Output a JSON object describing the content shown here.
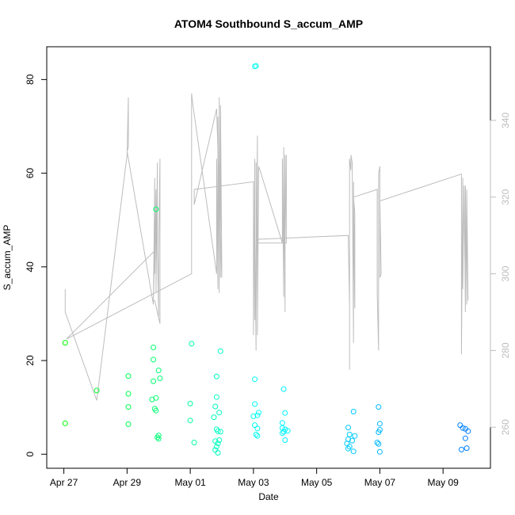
{
  "chart_data": {
    "type": "scatter",
    "title": "ATOM4 Southbound S_accum_AMP",
    "xlabel": "Date",
    "ylabel": "S_accum_AMP",
    "x_axis": {
      "type": "date",
      "range": [
        "2015-04-26T11:00",
        "2015-05-10T12:00"
      ],
      "ticks": [
        {
          "label": "Apr 27",
          "date": "2015-04-27"
        },
        {
          "label": "Apr 29",
          "date": "2015-04-29"
        },
        {
          "label": "May 01",
          "date": "2015-05-01"
        },
        {
          "label": "May 03",
          "date": "2015-05-03"
        },
        {
          "label": "May 05",
          "date": "2015-05-05"
        },
        {
          "label": "May 07",
          "date": "2015-05-07"
        },
        {
          "label": "May 09",
          "date": "2015-05-09"
        }
      ]
    },
    "y_left": {
      "range": [
        -3,
        87
      ],
      "ticks": [
        0,
        20,
        40,
        60,
        80
      ]
    },
    "y_right": {
      "range": [
        249.3,
        359.2
      ],
      "ticks": [
        260,
        280,
        300,
        320,
        340
      ],
      "color": "#bdbdbd"
    },
    "grid": false,
    "legend": "none",
    "series": [
      {
        "kind": "points",
        "axis": "left",
        "color_scale": [
          "#00ff00",
          "#00ffff",
          "#0080ff"
        ],
        "points": [
          {
            "x": "2015-04-27T01:00",
            "y": 23.8
          },
          {
            "x": "2015-04-27T01:00",
            "y": 6.6
          },
          {
            "x": "2015-04-28T01:00",
            "y": 13.6
          },
          {
            "x": "2015-04-29T01:00",
            "y": 16.7
          },
          {
            "x": "2015-04-29T01:00",
            "y": 12.9
          },
          {
            "x": "2015-04-29T01:00",
            "y": 10.1
          },
          {
            "x": "2015-04-29T01:00",
            "y": 6.4
          },
          {
            "x": "2015-04-29T20:00",
            "y": 22.8
          },
          {
            "x": "2015-04-29T20:00",
            "y": 20.2
          },
          {
            "x": "2015-04-29T20:00",
            "y": 15.6
          },
          {
            "x": "2015-04-29T19:00",
            "y": 11.7
          },
          {
            "x": "2015-04-29T22:00",
            "y": 12.0
          },
          {
            "x": "2015-04-29T21:00",
            "y": 9.7
          },
          {
            "x": "2015-04-29T22:00",
            "y": 9.3
          },
          {
            "x": "2015-04-29T22:00",
            "y": 52.3
          },
          {
            "x": "2015-04-30T00:00",
            "y": 17.9
          },
          {
            "x": "2015-04-30T01:00",
            "y": 16.2
          },
          {
            "x": "2015-04-30T00:00",
            "y": 4.0
          },
          {
            "x": "2015-04-30T00:00",
            "y": 3.3
          },
          {
            "x": "2015-04-29T23:00",
            "y": 3.6
          },
          {
            "x": "2015-05-01T01:00",
            "y": 23.6
          },
          {
            "x": "2015-05-01T00:00",
            "y": 10.8
          },
          {
            "x": "2015-05-01T00:00",
            "y": 7.2
          },
          {
            "x": "2015-05-01T03:00",
            "y": 2.5
          },
          {
            "x": "2015-05-01T20:00",
            "y": 16.6
          },
          {
            "x": "2015-05-01T20:00",
            "y": 12.2
          },
          {
            "x": "2015-05-01T19:00",
            "y": 10.2
          },
          {
            "x": "2015-05-01T23:00",
            "y": 22.0
          },
          {
            "x": "2015-05-01T22:00",
            "y": 8.9
          },
          {
            "x": "2015-05-01T18:00",
            "y": 7.9
          },
          {
            "x": "2015-05-01T20:00",
            "y": 5.3
          },
          {
            "x": "2015-05-01T21:00",
            "y": 4.9
          },
          {
            "x": "2015-05-01T23:00",
            "y": 4.8
          },
          {
            "x": "2015-05-01T19:00",
            "y": 2.8
          },
          {
            "x": "2015-05-01T21:00",
            "y": 2.3
          },
          {
            "x": "2015-05-01T20:00",
            "y": 1.6
          },
          {
            "x": "2015-05-01T19:00",
            "y": 0.9
          },
          {
            "x": "2015-05-01T21:00",
            "y": 0.3
          },
          {
            "x": "2015-05-01T22:00",
            "y": 3.0
          },
          {
            "x": "2015-05-03T01:00",
            "y": 82.8
          },
          {
            "x": "2015-05-03T02:00",
            "y": 82.9
          },
          {
            "x": "2015-05-03T01:00",
            "y": 16.0
          },
          {
            "x": "2015-05-03T01:00",
            "y": 10.7
          },
          {
            "x": "2015-05-03T00:00",
            "y": 8.1
          },
          {
            "x": "2015-05-03T03:00",
            "y": 8.3
          },
          {
            "x": "2015-05-03T04:00",
            "y": 8.9
          },
          {
            "x": "2015-05-03T01:00",
            "y": 6.2
          },
          {
            "x": "2015-05-03T03:00",
            "y": 5.5
          },
          {
            "x": "2015-05-03T02:00",
            "y": 4.2
          },
          {
            "x": "2015-05-03T03:00",
            "y": 3.9
          },
          {
            "x": "2015-05-03T23:00",
            "y": 13.9
          },
          {
            "x": "2015-05-04T00:00",
            "y": 8.8
          },
          {
            "x": "2015-05-03T22:00",
            "y": 6.7
          },
          {
            "x": "2015-05-03T22:00",
            "y": 5.6
          },
          {
            "x": "2015-05-04T00:00",
            "y": 5.3
          },
          {
            "x": "2015-05-04T02:00",
            "y": 5.0
          },
          {
            "x": "2015-05-03T23:00",
            "y": 4.8
          },
          {
            "x": "2015-05-03T22:00",
            "y": 4.5
          },
          {
            "x": "2015-05-04T00:00",
            "y": 3.0
          },
          {
            "x": "2015-05-06T00:00",
            "y": 5.7
          },
          {
            "x": "2015-05-06T01:00",
            "y": 4.2
          },
          {
            "x": "2015-05-06T00:00",
            "y": 3.2
          },
          {
            "x": "2015-05-06T03:00",
            "y": 2.9
          },
          {
            "x": "2015-05-05T23:00",
            "y": 2.3
          },
          {
            "x": "2015-05-06T01:00",
            "y": 1.6
          },
          {
            "x": "2015-05-06T00:00",
            "y": 1.2
          },
          {
            "x": "2015-05-06T04:00",
            "y": 0.6
          },
          {
            "x": "2015-05-06T05:00",
            "y": 3.9
          },
          {
            "x": "2015-05-06T04:00",
            "y": 9.1
          },
          {
            "x": "2015-05-06T23:00",
            "y": 10.1
          },
          {
            "x": "2015-05-07T00:00",
            "y": 6.5
          },
          {
            "x": "2015-05-07T00:00",
            "y": 5.2
          },
          {
            "x": "2015-05-06T23:00",
            "y": 4.7
          },
          {
            "x": "2015-05-06T22:00",
            "y": 2.5
          },
          {
            "x": "2015-05-06T23:00",
            "y": 2.2
          },
          {
            "x": "2015-05-07T00:00",
            "y": 0.5
          },
          {
            "x": "2015-05-09T13:00",
            "y": 6.2
          },
          {
            "x": "2015-05-09T15:00",
            "y": 5.6
          },
          {
            "x": "2015-05-09T17:00",
            "y": 5.4
          },
          {
            "x": "2015-05-09T19:00",
            "y": 4.9
          },
          {
            "x": "2015-05-09T17:00",
            "y": 3.4
          },
          {
            "x": "2015-05-09T18:00",
            "y": 1.3
          },
          {
            "x": "2015-05-09T14:00",
            "y": 1.0
          }
        ]
      },
      {
        "kind": "line",
        "axis": "right",
        "color": "#bdbdbd",
        "points": [
          {
            "x": "2015-04-27T01:00",
            "y": 296
          },
          {
            "x": "2015-04-27T01:00",
            "y": 290
          },
          {
            "x": "2015-04-28T01:00",
            "y": 267
          },
          {
            "x": "2015-04-29T00:00",
            "y": 331
          },
          {
            "x": "2015-04-29T01:00",
            "y": 346
          },
          {
            "x": "2015-04-29T01:00",
            "y": 333
          },
          {
            "x": "2015-04-29T00:00",
            "y": 332
          },
          {
            "x": "2015-04-29T20:00",
            "y": 292
          },
          {
            "x": "2015-04-29T21:00",
            "y": 325
          },
          {
            "x": "2015-04-29T21:00",
            "y": 300
          },
          {
            "x": "2015-04-29T22:00",
            "y": 322
          },
          {
            "x": "2015-04-29T22:00",
            "y": 295
          },
          {
            "x": "2015-04-29T23:00",
            "y": 329
          },
          {
            "x": "2015-04-29T23:00",
            "y": 308
          },
          {
            "x": "2015-04-30T00:00",
            "y": 289
          },
          {
            "x": "2015-04-30T00:00",
            "y": 305
          },
          {
            "x": "2015-04-30T01:00",
            "y": 330
          },
          {
            "x": "2015-04-30T01:00",
            "y": 302
          },
          {
            "x": "2015-04-30T01:00",
            "y": 287
          },
          {
            "x": "2015-04-29T21:00",
            "y": 293
          },
          {
            "x": "2015-04-29T20:00",
            "y": 293
          },
          {
            "x": "2015-04-29T21:00",
            "y": 306
          },
          {
            "x": "2015-04-27T02:00",
            "y": 283
          },
          {
            "x": "2015-05-01T01:00",
            "y": 300
          },
          {
            "x": "2015-05-01T01:00",
            "y": 347
          },
          {
            "x": "2015-05-01T02:00",
            "y": 344
          },
          {
            "x": "2015-05-01T20:00",
            "y": 300
          },
          {
            "x": "2015-05-01T20:00",
            "y": 311
          },
          {
            "x": "2015-05-01T20:00",
            "y": 326
          },
          {
            "x": "2015-05-01T20:00",
            "y": 330
          },
          {
            "x": "2015-05-01T21:00",
            "y": 296
          },
          {
            "x": "2015-05-01T21:00",
            "y": 335
          },
          {
            "x": "2015-05-01T21:00",
            "y": 341
          },
          {
            "x": "2015-05-01T22:00",
            "y": 295
          },
          {
            "x": "2015-05-01T22:00",
            "y": 315
          },
          {
            "x": "2015-05-01T22:00",
            "y": 346
          },
          {
            "x": "2015-05-01T23:00",
            "y": 299
          },
          {
            "x": "2015-05-01T23:00",
            "y": 344
          },
          {
            "x": "2015-05-02T00:00",
            "y": 299
          },
          {
            "x": "2015-05-01T20:00",
            "y": 343
          },
          {
            "x": "2015-05-01T03:00",
            "y": 318
          },
          {
            "x": "2015-05-01T03:00",
            "y": 322
          },
          {
            "x": "2015-05-03T00:00",
            "y": 324
          },
          {
            "x": "2015-05-03T00:00",
            "y": 284
          },
          {
            "x": "2015-05-03T01:00",
            "y": 330
          },
          {
            "x": "2015-05-03T01:00",
            "y": 288
          },
          {
            "x": "2015-05-03T01:00",
            "y": 310
          },
          {
            "x": "2015-05-03T02:00",
            "y": 280
          },
          {
            "x": "2015-05-03T02:00",
            "y": 329
          },
          {
            "x": "2015-05-03T02:00",
            "y": 290
          },
          {
            "x": "2015-05-03T03:00",
            "y": 336
          },
          {
            "x": "2015-05-03T03:00",
            "y": 284
          },
          {
            "x": "2015-05-03T04:00",
            "y": 328
          },
          {
            "x": "2015-05-03T05:00",
            "y": 327
          },
          {
            "x": "2015-05-03T22:00",
            "y": 308
          },
          {
            "x": "2015-05-03T22:00",
            "y": 330
          },
          {
            "x": "2015-05-03T23:00",
            "y": 294
          },
          {
            "x": "2015-05-03T23:00",
            "y": 333
          },
          {
            "x": "2015-05-04T00:00",
            "y": 290
          },
          {
            "x": "2015-05-04T00:00",
            "y": 331
          },
          {
            "x": "2015-05-04T00:00",
            "y": 309
          },
          {
            "x": "2015-05-04T01:00",
            "y": 331
          },
          {
            "x": "2015-05-04T01:00",
            "y": 308
          },
          {
            "x": "2015-05-03T03:00",
            "y": 308
          },
          {
            "x": "2015-05-03T04:00",
            "y": 309
          },
          {
            "x": "2015-05-06T00:00",
            "y": 310
          },
          {
            "x": "2015-05-06T01:00",
            "y": 292
          },
          {
            "x": "2015-05-06T01:00",
            "y": 275
          },
          {
            "x": "2015-05-06T01:00",
            "y": 330
          },
          {
            "x": "2015-05-06T02:00",
            "y": 327
          },
          {
            "x": "2015-05-06T02:00",
            "y": 331
          },
          {
            "x": "2015-05-06T03:00",
            "y": 329
          },
          {
            "x": "2015-05-06T04:00",
            "y": 282
          },
          {
            "x": "2015-05-06T04:00",
            "y": 324
          },
          {
            "x": "2015-05-06T05:00",
            "y": 291
          },
          {
            "x": "2015-05-06T05:00",
            "y": 316
          },
          {
            "x": "2015-05-06T04:00",
            "y": 320
          },
          {
            "x": "2015-05-06T22:00",
            "y": 322
          },
          {
            "x": "2015-05-06T22:00",
            "y": 295
          },
          {
            "x": "2015-05-06T23:00",
            "y": 280
          },
          {
            "x": "2015-05-06T23:00",
            "y": 326
          },
          {
            "x": "2015-05-07T00:00",
            "y": 328
          },
          {
            "x": "2015-05-07T00:00",
            "y": 299
          },
          {
            "x": "2015-05-07T01:00",
            "y": 300
          },
          {
            "x": "2015-05-07T00:00",
            "y": 319
          },
          {
            "x": "2015-05-09T14:00",
            "y": 326
          },
          {
            "x": "2015-05-09T14:00",
            "y": 279
          },
          {
            "x": "2015-05-09T15:00",
            "y": 325
          },
          {
            "x": "2015-05-09T15:00",
            "y": 296
          },
          {
            "x": "2015-05-09T16:00",
            "y": 323
          },
          {
            "x": "2015-05-09T17:00",
            "y": 290
          },
          {
            "x": "2015-05-09T17:00",
            "y": 323
          },
          {
            "x": "2015-05-09T18:00",
            "y": 292
          },
          {
            "x": "2015-05-09T18:00",
            "y": 322
          },
          {
            "x": "2015-05-09T19:00",
            "y": 293
          }
        ]
      }
    ]
  }
}
